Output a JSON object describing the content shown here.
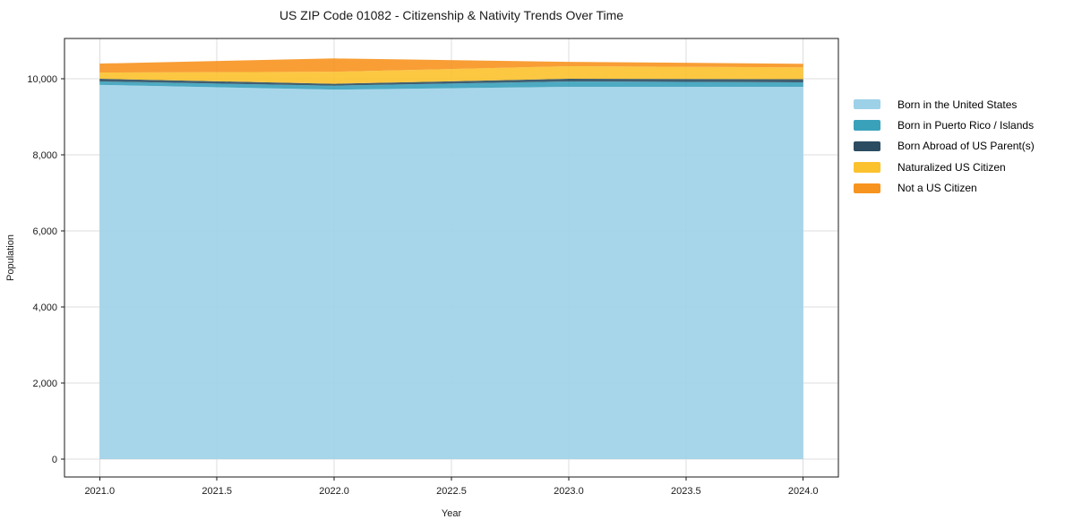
{
  "title": "US ZIP Code 01082 - Citizenship & Nativity Trends Over Time",
  "chart_data": {
    "type": "area",
    "stacked": true,
    "title": "US ZIP Code 01082 - Citizenship & Nativity Trends Over Time",
    "xlabel": "Year",
    "ylabel": "Population",
    "x": [
      2021,
      2022,
      2023,
      2024
    ],
    "series": [
      {
        "name": "Born in the United States",
        "color": "#9DD1E8",
        "values": [
          9840,
          9715,
          9790,
          9790
        ]
      },
      {
        "name": "Born in Puerto Rico / Islands",
        "color": "#3AA1BB",
        "values": [
          90,
          105,
          140,
          115
        ]
      },
      {
        "name": "Born Abroad of US Parent(s)",
        "color": "#2B4C61",
        "values": [
          70,
          50,
          70,
          85
        ]
      },
      {
        "name": "Naturalized US Citizen",
        "color": "#FCC22E",
        "values": [
          165,
          315,
          330,
          310
        ]
      },
      {
        "name": "Not a US Citizen",
        "color": "#F7941F",
        "values": [
          235,
          350,
          115,
          95
        ]
      }
    ],
    "totals": [
      10400,
      10535,
      10445,
      10395
    ],
    "x_ticks": [
      2021.0,
      2021.5,
      2022.0,
      2022.5,
      2023.0,
      2023.5,
      2024.0
    ],
    "x_tick_labels": [
      "2021.0",
      "2021.5",
      "2022.0",
      "2022.5",
      "2023.0",
      "2023.5",
      "2024.0"
    ],
    "y_ticks": [
      0,
      2000,
      4000,
      6000,
      8000,
      10000
    ],
    "y_tick_labels": [
      "0",
      "2,000",
      "4,000",
      "6,000",
      "8,000",
      "10,000"
    ],
    "xlim": [
      2020.85,
      2024.15
    ],
    "ylim": [
      -470,
      11060
    ],
    "grid": true,
    "legend_position": "right",
    "colors": {
      "grid": "#dcdcdc",
      "spine": "#1a1a1a",
      "tick_text": "#1a1a1a",
      "background": "#ffffff"
    }
  }
}
